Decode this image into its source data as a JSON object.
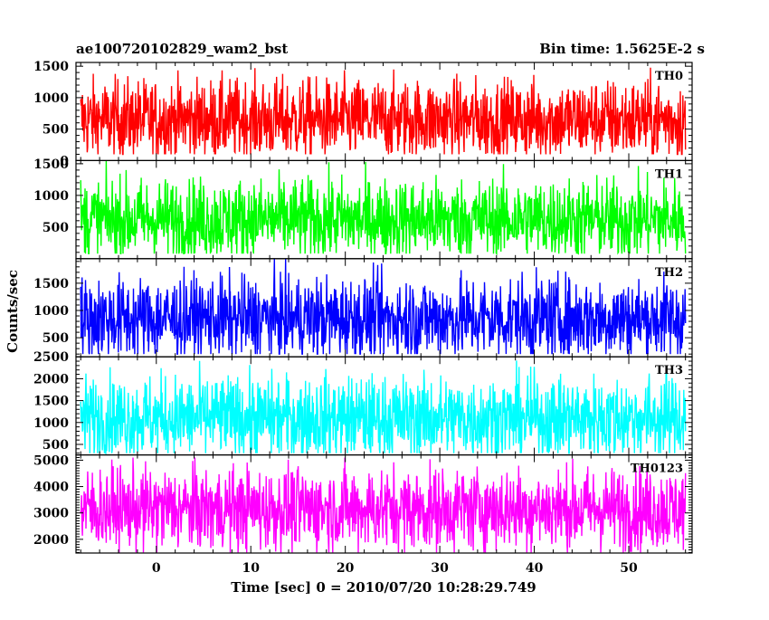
{
  "header": {
    "title": "ae100720102829_wam2_bst",
    "bin_time": "Bin time: 1.5625E-2 s"
  },
  "chart_data": {
    "type": "line",
    "title": "ae100720102829_wam2_bst",
    "subtitle": "Bin time: 1.5625E-2 s",
    "xlabel": "Time [sec] 0 = 2010/07/20 10:28:29.749",
    "ylabel": "Counts/sec",
    "xlim": [
      -8.5,
      56.7
    ],
    "x_data_range": [
      -8.0,
      56.0
    ],
    "x_ticks": [
      0,
      10,
      20,
      30,
      40,
      50
    ],
    "x_tick_labels": [
      "0",
      "10",
      "20",
      "30",
      "40",
      "50"
    ],
    "grid": false,
    "panels": [
      {
        "name": "TH0",
        "color": "#ff0000",
        "ylim": [
          0,
          1560
        ],
        "y_ticks": [
          0,
          500,
          1000,
          1500
        ],
        "y_tick_labels": [
          "0",
          "500",
          "1000",
          "1500"
        ],
        "mean": 650,
        "min": 100,
        "max": 1560
      },
      {
        "name": "TH1",
        "color": "#00ff00",
        "ylim": [
          0,
          1550
        ],
        "y_ticks": [
          500,
          1000,
          1500
        ],
        "y_tick_labels": [
          "500",
          "1000",
          "1500"
        ],
        "mean": 620,
        "min": 80,
        "max": 1550
      },
      {
        "name": "TH2",
        "color": "#0000ff",
        "ylim": [
          150,
          1950
        ],
        "y_ticks": [
          500,
          1000,
          1500
        ],
        "y_tick_labels": [
          "500",
          "1000",
          "1500"
        ],
        "mean": 850,
        "min": 200,
        "max": 1950
      },
      {
        "name": "TH3",
        "color": "#00ffff",
        "ylim": [
          260,
          2500
        ],
        "y_ticks": [
          500,
          1000,
          1500,
          2000,
          2500
        ],
        "y_tick_labels": [
          "500",
          "1000",
          "1500",
          "2000",
          "2500"
        ],
        "mean": 1100,
        "min": 300,
        "max": 2500
      },
      {
        "name": "TH0123",
        "color": "#ff00ff",
        "ylim": [
          1480,
          5200
        ],
        "y_ticks": [
          2000,
          3000,
          4000,
          5000
        ],
        "y_tick_labels": [
          "2000",
          "3000",
          "4000",
          "5000"
        ],
        "mean": 3150,
        "min": 1500,
        "max": 5100
      }
    ]
  }
}
